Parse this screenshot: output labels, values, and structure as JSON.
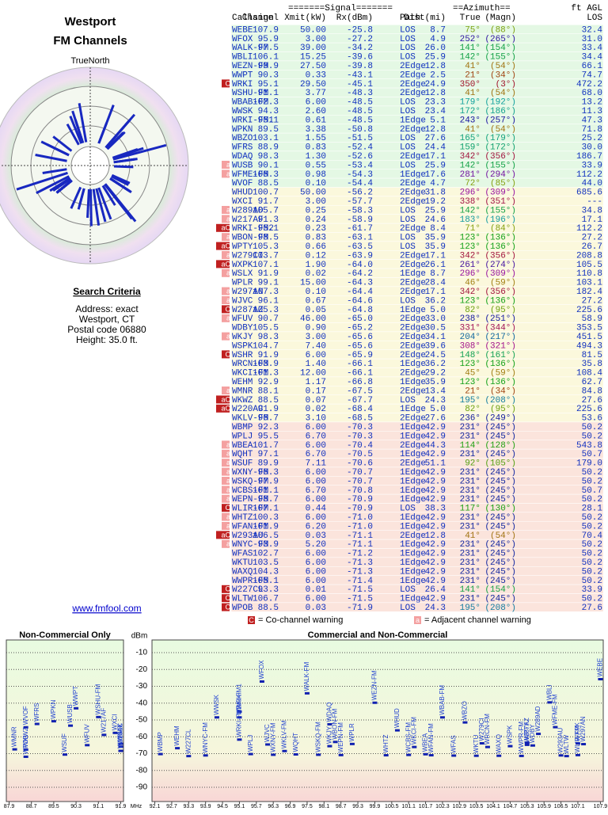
{
  "header": {
    "title": "Westport",
    "subtitle": "FM Channels"
  },
  "compass": {
    "label": "TrueNorth",
    "north": "N"
  },
  "table": {
    "group_headers": [
      "=======Signal=======",
      "==Azimuth==",
      "ft AGL"
    ],
    "columns": [
      "Callsign",
      "Channel",
      "Xmit(kW)",
      "Rx(dBm)",
      "Path",
      "Dist(mi)",
      "True",
      "(Magn)",
      "LOS"
    ],
    "rows": [
      [
        null,
        "WEBE",
        "107.9",
        "50.00",
        "-25.8",
        "LOS",
        "8.7",
        "75°",
        "(88°)",
        "32.4"
      ],
      [
        null,
        "WFOX",
        "95.9",
        "3.00",
        "-27.2",
        "LOS",
        "4.9",
        "252°",
        "(265°)",
        "31.0"
      ],
      [
        null,
        "WALK-FM",
        "97.5",
        "39.00",
        "-34.2",
        "LOS",
        "26.0",
        "141°",
        "(154°)",
        "33.4"
      ],
      [
        null,
        "WBLI",
        "106.1",
        "15.25",
        "-39.6",
        "LOS",
        "25.9",
        "142°",
        "(155°)",
        "34.4"
      ],
      [
        null,
        "WEZN-FM",
        "99.9",
        "27.50",
        "-39.8",
        "2Edge",
        "12.8",
        "41°",
        "(54°)",
        "66.1"
      ],
      [
        null,
        "WWPT",
        "90.3",
        "0.33",
        "-43.1",
        "2Edge",
        "2.5",
        "21°",
        "(34°)",
        "74.7"
      ],
      [
        "C",
        "WRKI",
        "95.1",
        "29.50",
        "-45.1",
        "2Edge",
        "24.9",
        "350°",
        "(3°)",
        "472.2"
      ],
      [
        null,
        "WSHU-FM",
        "91.1",
        "3.77",
        "-48.3",
        "2Edge",
        "12.8",
        "41°",
        "(54°)",
        "68.0"
      ],
      [
        null,
        "WBAB-FM",
        "102.3",
        "6.00",
        "-48.5",
        "LOS",
        "23.3",
        "179°",
        "(192°)",
        "13.2"
      ],
      [
        null,
        "WWSK",
        "94.3",
        "2.60",
        "-48.5",
        "LOS",
        "23.4",
        "172°",
        "(186°)",
        "11.3"
      ],
      [
        null,
        "WRKI-FM1",
        "95.1",
        "0.61",
        "-48.5",
        "1Edge",
        "5.1",
        "243°",
        "(257°)",
        "47.3"
      ],
      [
        null,
        "WPKN",
        "89.5",
        "3.38",
        "-50.8",
        "2Edge",
        "12.8",
        "41°",
        "(54°)",
        "71.8"
      ],
      [
        null,
        "WBZO",
        "103.1",
        "1.55",
        "-51.5",
        "LOS",
        "27.6",
        "165°",
        "(179°)",
        "25.2"
      ],
      [
        null,
        "WFRS",
        "88.9",
        "0.83",
        "-52.4",
        "LOS",
        "24.4",
        "159°",
        "(172°)",
        "30.0"
      ],
      [
        null,
        "WDAQ",
        "98.3",
        "1.30",
        "-52.6",
        "2Edge",
        "17.1",
        "342°",
        "(356°)",
        "186.7"
      ],
      [
        "a",
        "WUSB",
        "90.1",
        "0.55",
        "-53.4",
        "LOS",
        "25.9",
        "142°",
        "(155°)",
        "33.9"
      ],
      [
        "a",
        "WFME-FM",
        "106.3",
        "0.98",
        "-54.3",
        "1Edge",
        "17.6",
        "281°",
        "(294°)",
        "112.2"
      ],
      [
        null,
        "WVOF",
        "88.5",
        "0.10",
        "-54.4",
        "2Edge",
        "4.7",
        "72°",
        "(85°)",
        "44.0"
      ],
      [
        null,
        "WHUD",
        "100.7",
        "50.00",
        "-56.2",
        "2Edge",
        "31.8",
        "296°",
        "(309°)",
        "685.6"
      ],
      [
        null,
        "WXCI",
        "91.7",
        "3.00",
        "-57.7",
        "2Edge",
        "19.2",
        "338°",
        "(351°)",
        "---"
      ],
      [
        "a",
        "W289AD",
        "105.7",
        "0.25",
        "-58.3",
        "LOS",
        "25.9",
        "142°",
        "(155°)",
        "34.8"
      ],
      [
        "a",
        "W217AF",
        "91.3",
        "0.24",
        "-58.9",
        "LOS",
        "24.6",
        "183°",
        "(196°)",
        "17.1"
      ],
      [
        "aC",
        "WRKI-FM2",
        "95.1",
        "0.23",
        "-61.7",
        "2Edge",
        "8.4",
        "71°",
        "(84°)",
        "112.2"
      ],
      [
        "a",
        "WBON-FM",
        "98.5",
        "0.83",
        "-63.1",
        "LOS",
        "35.9",
        "123°",
        "(136°)",
        "27.2"
      ],
      [
        "aC",
        "WPTY",
        "105.3",
        "0.66",
        "-63.5",
        "LOS",
        "35.9",
        "123°",
        "(136°)",
        "26.7"
      ],
      [
        "a",
        "W279CI",
        "103.7",
        "0.12",
        "-63.9",
        "2Edge",
        "17.1",
        "342°",
        "(356°)",
        "208.8"
      ],
      [
        "aC",
        "WXPK",
        "107.1",
        "1.90",
        "-64.0",
        "2Edge",
        "26.1",
        "261°",
        "(274°)",
        "105.5"
      ],
      [
        "a",
        "WSLX",
        "91.9",
        "0.02",
        "-64.2",
        "1Edge",
        "8.7",
        "296°",
        "(309°)",
        "110.8"
      ],
      [
        null,
        "WPLR",
        "99.1",
        "15.00",
        "-64.3",
        "2Edge",
        "28.4",
        "46°",
        "(59°)",
        "103.1"
      ],
      [
        "a",
        "W297AN",
        "107.3",
        "0.10",
        "-64.4",
        "2Edge",
        "17.1",
        "342°",
        "(356°)",
        "182.4"
      ],
      [
        "a",
        "WJVC",
        "96.1",
        "0.67",
        "-64.6",
        "LOS",
        "36.2",
        "123°",
        "(136°)",
        "27.2"
      ],
      [
        "C",
        "W287AZ",
        "105.3",
        "0.05",
        "-64.8",
        "1Edge",
        "5.0",
        "82°",
        "(95°)",
        "225.6"
      ],
      [
        "a",
        "WFUV",
        "90.7",
        "46.00",
        "-65.0",
        "2Edge",
        "33.0",
        "238°",
        "(251°)",
        "58.9"
      ],
      [
        null,
        "WDBY",
        "105.5",
        "0.90",
        "-65.2",
        "2Edge",
        "30.5",
        "331°",
        "(344°)",
        "353.5"
      ],
      [
        "a",
        "WKJY",
        "98.3",
        "3.00",
        "-65.6",
        "2Edge",
        "34.1",
        "204°",
        "(217°)",
        "451.5"
      ],
      [
        null,
        "WSPK",
        "104.7",
        "7.40",
        "-65.6",
        "2Edge",
        "39.6",
        "308°",
        "(321°)",
        "494.3"
      ],
      [
        "C",
        "WSHR",
        "91.9",
        "6.00",
        "-65.9",
        "2Edge",
        "24.5",
        "148°",
        "(161°)",
        "81.5"
      ],
      [
        null,
        "WRCN-FM",
        "103.9",
        "1.40",
        "-66.1",
        "1Edge",
        "36.2",
        "123°",
        "(136°)",
        "35.8"
      ],
      [
        null,
        "WKCI-FM",
        "101.3",
        "12.00",
        "-66.1",
        "2Edge",
        "29.2",
        "45°",
        "(59°)",
        "108.4"
      ],
      [
        null,
        "WEHM",
        "92.9",
        "1.17",
        "-66.8",
        "1Edge",
        "35.9",
        "123°",
        "(136°)",
        "62.7"
      ],
      [
        "a",
        "WMNR",
        "88.1",
        "0.17",
        "-67.5",
        "2Edge",
        "13.4",
        "21°",
        "(34°)",
        "84.8"
      ],
      [
        "aC",
        "WKWZ",
        "88.5",
        "0.07",
        "-67.7",
        "LOS",
        "24.3",
        "195°",
        "(208°)",
        "27.6"
      ],
      [
        "aC",
        "W220AC",
        "91.9",
        "0.02",
        "-68.4",
        "1Edge",
        "5.0",
        "82°",
        "(95°)",
        "225.6"
      ],
      [
        null,
        "WKLV-FM",
        "96.7",
        "3.10",
        "-68.5",
        "2Edge",
        "27.6",
        "236°",
        "(249°)",
        "53.6"
      ],
      [
        null,
        "WBMP",
        "92.3",
        "6.00",
        "-70.3",
        "1Edge",
        "42.9",
        "231°",
        "(245°)",
        "50.2"
      ],
      [
        null,
        "WPLJ",
        "95.5",
        "6.70",
        "-70.3",
        "1Edge",
        "42.9",
        "231°",
        "(245°)",
        "50.2"
      ],
      [
        "a",
        "WBEA",
        "101.7",
        "6.00",
        "-70.4",
        "2Edge",
        "44.3",
        "114°",
        "(128°)",
        "543.8"
      ],
      [
        "a",
        "WQHT",
        "97.1",
        "6.70",
        "-70.5",
        "1Edge",
        "42.9",
        "231°",
        "(245°)",
        "50.7"
      ],
      [
        "a",
        "WSUF",
        "89.9",
        "7.11",
        "-70.6",
        "2Edge",
        "51.1",
        "92°",
        "(105°)",
        "179.0"
      ],
      [
        "a",
        "WXNY-FM",
        "96.3",
        "6.00",
        "-70.7",
        "1Edge",
        "42.9",
        "231°",
        "(245°)",
        "50.2"
      ],
      [
        "a",
        "WSKQ-FM",
        "97.9",
        "6.00",
        "-70.7",
        "1Edge",
        "42.9",
        "231°",
        "(245°)",
        "50.2"
      ],
      [
        "a",
        "WCBS-FM",
        "101.1",
        "6.70",
        "-70.8",
        "1Edge",
        "42.9",
        "231°",
        "(245°)",
        "50.7"
      ],
      [
        "a",
        "WEPN-FM",
        "98.7",
        "6.00",
        "-70.9",
        "1Edge",
        "42.9",
        "231°",
        "(245°)",
        "50.2"
      ],
      [
        "C",
        "WLIR-FM",
        "107.1",
        "0.44",
        "-70.9",
        "LOS",
        "38.3",
        "117°",
        "(130°)",
        "28.1"
      ],
      [
        "a",
        "WHTZ",
        "100.3",
        "6.00",
        "-71.0",
        "1Edge",
        "42.9",
        "231°",
        "(245°)",
        "50.2"
      ],
      [
        "a",
        "WFAN-FM",
        "101.9",
        "6.20",
        "-71.0",
        "1Edge",
        "42.9",
        "231°",
        "(245°)",
        "50.2"
      ],
      [
        "aC",
        "W293AU",
        "106.5",
        "0.03",
        "-71.1",
        "2Edge",
        "12.8",
        "41°",
        "(54°)",
        "70.4"
      ],
      [
        "a",
        "WNYC-FM",
        "93.9",
        "5.20",
        "-71.1",
        "1Edge",
        "42.9",
        "231°",
        "(245°)",
        "50.2"
      ],
      [
        null,
        "WFAS",
        "102.7",
        "6.00",
        "-71.2",
        "1Edge",
        "42.9",
        "231°",
        "(245°)",
        "50.2"
      ],
      [
        null,
        "WKTU",
        "103.5",
        "6.00",
        "-71.3",
        "1Edge",
        "42.9",
        "231°",
        "(245°)",
        "50.2"
      ],
      [
        null,
        "WAXQ",
        "104.3",
        "6.00",
        "-71.3",
        "1Edge",
        "42.9",
        "231°",
        "(245°)",
        "50.2"
      ],
      [
        null,
        "WWPR-FM",
        "105.1",
        "6.00",
        "-71.4",
        "1Edge",
        "42.9",
        "231°",
        "(245°)",
        "50.2"
      ],
      [
        "C",
        "W227CL",
        "93.3",
        "0.01",
        "-71.5",
        "LOS",
        "26.4",
        "141°",
        "(154°)",
        "33.9"
      ],
      [
        "C",
        "WLTW",
        "106.7",
        "6.00",
        "-71.5",
        "1Edge",
        "42.9",
        "231°",
        "(245°)",
        "50.2"
      ],
      [
        "C",
        "WPOB",
        "88.5",
        "0.03",
        "-71.9",
        "LOS",
        "24.3",
        "195°",
        "(208°)",
        "27.6"
      ]
    ]
  },
  "legend": [
    {
      "symbol": "C",
      "text": "= Co-channel warning"
    },
    {
      "symbol": "a",
      "text": "= Adjacent channel warning"
    }
  ],
  "search": {
    "title": "Search Criteria",
    "lines": [
      "Address: exact",
      "Westport, CT",
      "Postal code 06880",
      "Height: 35.0 ft."
    ]
  },
  "link": "www.fmfool.com",
  "spectrum": {
    "y_label": "dBm",
    "x_label": "MHz",
    "ylim": [
      -2.5,
      -98.5
    ],
    "yticks": [
      -10,
      -20,
      -30,
      -40,
      -50,
      -60,
      -70,
      -80,
      -90
    ],
    "panels": [
      {
        "title": "Non-Commercial Only",
        "xlim": [
          87.8,
          92.0
        ],
        "xticks": [
          87.9,
          88.7,
          89.5,
          90.3,
          91.1,
          91.9
        ]
      },
      {
        "title": "Commercial and Non-Commercial",
        "xlim": [
          92.0,
          108.0
        ],
        "xticks": [
          92.1,
          92.7,
          93.3,
          93.9,
          94.5,
          95.1,
          95.7,
          96.3,
          96.9,
          97.5,
          98.1,
          98.7,
          99.3,
          99.9,
          100.5,
          101.1,
          101.7,
          102.3,
          102.9,
          103.5,
          104.1,
          104.7,
          105.3,
          105.9,
          106.5,
          107.1,
          107.9
        ]
      }
    ]
  }
}
